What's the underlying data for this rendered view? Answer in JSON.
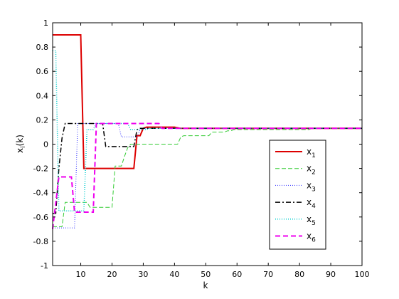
{
  "chart_data": {
    "type": "line",
    "title": "",
    "xlabel": "k",
    "ylabel_main": "x",
    "ylabel_sub": "i",
    "ylabel_tail": "(k)",
    "xlim": [
      1,
      100
    ],
    "ylim": [
      -1,
      1
    ],
    "grid": false,
    "legend_position": "lower-right",
    "x_ticks": [
      10,
      20,
      30,
      40,
      50,
      60,
      70,
      80,
      90,
      100
    ],
    "x_tick_labels": [
      "10",
      "20",
      "30",
      "40",
      "50",
      "60",
      "70",
      "80",
      "90",
      "100"
    ],
    "y_ticks": [
      -1,
      -0.8,
      -0.6,
      -0.4,
      -0.2,
      0,
      0.2,
      0.4,
      0.6,
      0.8,
      1
    ],
    "y_tick_labels": [
      "-1",
      "-0.8",
      "-0.6",
      "-0.4",
      "-0.2",
      "0",
      "0.2",
      "0.4",
      "0.6",
      "0.8",
      "1"
    ],
    "series": [
      {
        "name": "x1",
        "label_main": "x",
        "label_sub": "1",
        "color": "#dd0000",
        "dash": "",
        "width": 2,
        "x": [
          1,
          10,
          11,
          27,
          28,
          29,
          30,
          31,
          35,
          40,
          42,
          43,
          100
        ],
        "y": [
          0.9,
          0.9,
          -0.2,
          -0.2,
          0.07,
          0.07,
          0.13,
          0.14,
          0.14,
          0.14,
          0.13,
          0.13,
          0.13
        ]
      },
      {
        "name": "x2",
        "label_main": "x",
        "label_sub": "2",
        "color": "#33cc33",
        "dash": "6,3",
        "width": 1,
        "x": [
          1,
          4,
          5,
          12,
          13,
          20,
          21,
          23,
          24,
          25,
          26,
          27,
          28,
          29,
          30,
          41,
          42,
          43,
          51,
          52,
          56,
          57,
          58,
          59,
          60,
          70,
          83,
          84,
          100
        ],
        "y": [
          -0.68,
          -0.68,
          -0.48,
          -0.48,
          -0.52,
          -0.52,
          -0.18,
          -0.18,
          -0.1,
          -0.03,
          0.0,
          0.0,
          0.0,
          0.0,
          0.0,
          0.0,
          0.06,
          0.07,
          0.07,
          0.1,
          0.1,
          0.11,
          0.11,
          0.12,
          0.12,
          0.12,
          0.12,
          0.13,
          0.13
        ]
      },
      {
        "name": "x3",
        "label_main": "x",
        "label_sub": "3",
        "color": "#3333ff",
        "dash": "1,2",
        "width": 1,
        "x": [
          1,
          8,
          9,
          22,
          23,
          28,
          29,
          30,
          100
        ],
        "y": [
          -0.69,
          -0.69,
          0.17,
          0.17,
          0.06,
          0.06,
          0.12,
          0.13,
          0.13
        ]
      },
      {
        "name": "x4",
        "label_main": "x",
        "label_sub": "4",
        "color": "#000000",
        "dash": "7,3,2,3",
        "width": 1.5,
        "x": [
          1,
          2,
          3,
          4,
          5,
          7,
          17,
          18,
          27,
          28,
          29,
          35,
          100
        ],
        "y": [
          -0.57,
          -0.57,
          -0.2,
          0.05,
          0.17,
          0.17,
          0.17,
          -0.02,
          -0.02,
          0.12,
          0.13,
          0.13,
          0.13
        ]
      },
      {
        "name": "x5",
        "label_main": "x",
        "label_sub": "5",
        "color": "#00cccc",
        "dash": "1,2",
        "width": 1.5,
        "x": [
          1,
          2,
          3,
          11,
          12,
          14,
          15,
          25,
          26,
          31,
          32,
          100
        ],
        "y": [
          0.77,
          0.77,
          -0.55,
          -0.55,
          0.12,
          0.12,
          0.17,
          0.17,
          0.12,
          0.12,
          0.13,
          0.13
        ]
      },
      {
        "name": "x6",
        "label_main": "x",
        "label_sub": "6",
        "color": "#ee00ee",
        "dash": "7,4",
        "width": 2,
        "x": [
          1,
          3,
          7,
          8,
          14,
          15,
          35,
          36,
          100
        ],
        "y": [
          -0.7,
          -0.27,
          -0.27,
          -0.56,
          -0.56,
          0.17,
          0.17,
          0.13,
          0.13
        ]
      }
    ]
  }
}
